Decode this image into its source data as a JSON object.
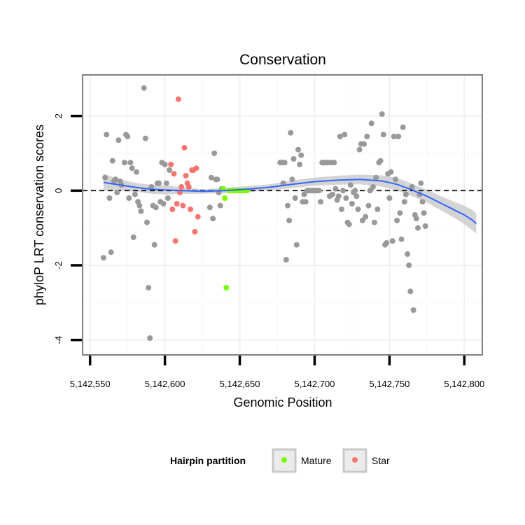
{
  "chart_data": {
    "type": "scatter",
    "title": "Conservation",
    "xlabel": "Genomic Position",
    "ylabel": "phyloP LRT conservation scores",
    "xlim": [
      5142545,
      5142812
    ],
    "ylim": [
      -4.4,
      3.1
    ],
    "xticks": [
      5142550,
      5142600,
      5142650,
      5142700,
      5142750,
      5142800
    ],
    "xtick_labels": [
      "5,142,550",
      "5,142,600",
      "5,142,650",
      "5,142,700",
      "5,142,750",
      "5,142,800"
    ],
    "yticks": [
      2,
      0,
      -2,
      -4
    ],
    "ytick_labels": [
      "2",
      "0",
      "-2",
      "-4"
    ],
    "reference_line_y": 0,
    "grid": true,
    "legend": {
      "title": "Hairpin partition",
      "position": "bottom",
      "entries": [
        {
          "label": "Mature",
          "color": "#7CFC00"
        },
        {
          "label": "Star",
          "color": "#F8766D"
        }
      ]
    },
    "colors": {
      "other": "#999999",
      "mature": "#7CFC00",
      "star": "#F8766D",
      "smooth": "#3366FF",
      "band": "#cccccc"
    },
    "series": [
      {
        "name": "Other",
        "points": [
          [
            5142559,
            -1.8
          ],
          [
            5142560,
            0.35
          ],
          [
            5142561,
            1.5
          ],
          [
            5142563,
            -0.2
          ],
          [
            5142564,
            -1.65
          ],
          [
            5142565,
            0.8
          ],
          [
            5142566,
            0.25
          ],
          [
            5142567,
            0.3
          ],
          [
            5142568,
            -0.05
          ],
          [
            5142569,
            1.35
          ],
          [
            5142570,
            0.25
          ],
          [
            5142571,
            0.15
          ],
          [
            5142573,
            0.75
          ],
          [
            5142574,
            1.5
          ],
          [
            5142575,
            1.45
          ],
          [
            5142576,
            -0.2
          ],
          [
            5142577,
            0.75
          ],
          [
            5142578,
            0.6
          ],
          [
            5142579,
            -1.25
          ],
          [
            5142580,
            -0.1
          ],
          [
            5142581,
            0.5
          ],
          [
            5142582,
            -0.3
          ],
          [
            5142583,
            -0.4
          ],
          [
            5142584,
            -0.55
          ],
          [
            5142586,
            2.75
          ],
          [
            5142587,
            1.4
          ],
          [
            5142588,
            -0.85
          ],
          [
            5142589,
            -2.6
          ],
          [
            5142590,
            -3.95
          ],
          [
            5142591,
            0.1
          ],
          [
            5142592,
            -0.4
          ],
          [
            5142593,
            -1.45
          ],
          [
            5142594,
            -0.45
          ],
          [
            5142595,
            0.2
          ],
          [
            5142596,
            0.2
          ],
          [
            5142597,
            -0.3
          ],
          [
            5142598,
            0.75
          ],
          [
            5142599,
            -0.35
          ],
          [
            5142600,
            0.7
          ],
          [
            5142601,
            0.2
          ],
          [
            5142602,
            -0.2
          ],
          [
            5142603,
            0.55
          ],
          [
            5142630,
            -0.45
          ],
          [
            5142631,
            0.35
          ],
          [
            5142632,
            -0.75
          ],
          [
            5142633,
            1.0
          ],
          [
            5142634,
            0.3
          ],
          [
            5142635,
            0.3
          ],
          [
            5142636,
            -0.05
          ],
          [
            5142637,
            -0.4
          ],
          [
            5142638,
            0.05
          ],
          [
            5142677,
            0.75
          ],
          [
            5142678,
            0.75
          ],
          [
            5142679,
            0.2
          ],
          [
            5142680,
            0.75
          ],
          [
            5142681,
            -1.85
          ],
          [
            5142682,
            -0.4
          ],
          [
            5142683,
            -0.8
          ],
          [
            5142684,
            1.55
          ],
          [
            5142685,
            0.3
          ],
          [
            5142686,
            0.85
          ],
          [
            5142687,
            -0.2
          ],
          [
            5142688,
            -1.45
          ],
          [
            5142689,
            1.1
          ],
          [
            5142690,
            0.7
          ],
          [
            5142691,
            0.95
          ],
          [
            5142692,
            -0.3
          ],
          [
            5142693,
            -0.1
          ],
          [
            5142694,
            -0.3
          ],
          [
            5142695,
            0.0
          ],
          [
            5142696,
            0.0
          ],
          [
            5142697,
            0.0
          ],
          [
            5142698,
            0.0
          ],
          [
            5142699,
            0.0
          ],
          [
            5142700,
            0.0
          ],
          [
            5142701,
            0.0
          ],
          [
            5142702,
            0.0
          ],
          [
            5142703,
            0.0
          ],
          [
            5142704,
            -0.3
          ],
          [
            5142705,
            0.75
          ],
          [
            5142706,
            0.75
          ],
          [
            5142707,
            0.75
          ],
          [
            5142708,
            0.75
          ],
          [
            5142709,
            0.75
          ],
          [
            5142710,
            -0.15
          ],
          [
            5142711,
            0.75
          ],
          [
            5142712,
            -0.1
          ],
          [
            5142713,
            0.75
          ],
          [
            5142714,
            0.05
          ],
          [
            5142715,
            -0.25
          ],
          [
            5142716,
            -0.15
          ],
          [
            5142717,
            1.45
          ],
          [
            5142718,
            -0.5
          ],
          [
            5142719,
            0.0
          ],
          [
            5142720,
            1.5
          ],
          [
            5142721,
            -0.2
          ],
          [
            5142722,
            -0.85
          ],
          [
            5142723,
            -0.9
          ],
          [
            5142724,
            0.15
          ],
          [
            5142725,
            -0.35
          ],
          [
            5142726,
            -0.05
          ],
          [
            5142727,
            0.0
          ],
          [
            5142728,
            -0.15
          ],
          [
            5142729,
            -0.5
          ],
          [
            5142730,
            1.1
          ],
          [
            5142731,
            1.25
          ],
          [
            5142732,
            -0.8
          ],
          [
            5142733,
            1.25
          ],
          [
            5142734,
            -0.7
          ],
          [
            5142735,
            1.45
          ],
          [
            5142736,
            -0.4
          ],
          [
            5142737,
            0.0
          ],
          [
            5142738,
            1.8
          ],
          [
            5142739,
            0.1
          ],
          [
            5142740,
            -0.85
          ],
          [
            5142741,
            0.35
          ],
          [
            5142742,
            -0.5
          ],
          [
            5142743,
            0.75
          ],
          [
            5142744,
            0.8
          ],
          [
            5142745,
            2.05
          ],
          [
            5142746,
            1.5
          ],
          [
            5142747,
            -1.45
          ],
          [
            5142748,
            -1.4
          ],
          [
            5142749,
            0.45
          ],
          [
            5142750,
            -0.2
          ],
          [
            5142751,
            0.5
          ],
          [
            5142752,
            -1.35
          ],
          [
            5142753,
            1.45
          ],
          [
            5142754,
            0.3
          ],
          [
            5142755,
            -0.8
          ],
          [
            5142756,
            1.45
          ],
          [
            5142757,
            -0.6
          ],
          [
            5142758,
            -1.3
          ],
          [
            5142759,
            1.7
          ],
          [
            5142760,
            -0.3
          ],
          [
            5142761,
            -0.1
          ],
          [
            5142762,
            -1.7
          ],
          [
            5142763,
            -2.0
          ],
          [
            5142764,
            -2.7
          ],
          [
            5142765,
            0.1
          ],
          [
            5142766,
            -3.2
          ],
          [
            5142767,
            -0.65
          ],
          [
            5142768,
            -0.75
          ],
          [
            5142769,
            -1.0
          ],
          [
            5142770,
            -0.1
          ],
          [
            5142771,
            0.2
          ],
          [
            5142772,
            -0.3
          ],
          [
            5142773,
            -0.6
          ],
          [
            5142774,
            -0.95
          ]
        ]
      },
      {
        "name": "Mature",
        "points": [
          [
            5142639,
            0.05
          ],
          [
            5142640,
            -0.2
          ],
          [
            5142641,
            -2.6
          ],
          [
            5142643,
            0.0
          ],
          [
            5142645,
            0.0
          ],
          [
            5142647,
            0.0
          ],
          [
            5142649,
            0.0
          ],
          [
            5142651,
            0.0
          ],
          [
            5142653,
            0.0
          ],
          [
            5142655,
            0.0
          ]
        ]
      },
      {
        "name": "Star",
        "points": [
          [
            5142604,
            0.7
          ],
          [
            5142605,
            -0.5
          ],
          [
            5142606,
            0.45
          ],
          [
            5142607,
            -1.35
          ],
          [
            5142608,
            -0.35
          ],
          [
            5142609,
            2.45
          ],
          [
            5142610,
            -0.05
          ],
          [
            5142611,
            0.1
          ],
          [
            5142612,
            -0.4
          ],
          [
            5142613,
            1.15
          ],
          [
            5142614,
            0.4
          ],
          [
            5142615,
            0.2
          ],
          [
            5142616,
            0.1
          ],
          [
            5142617,
            -0.5
          ],
          [
            5142618,
            0.55
          ],
          [
            5142619,
            0.55
          ],
          [
            5142620,
            -1.1
          ],
          [
            5142621,
            0.6
          ],
          [
            5142622,
            -0.7
          ]
        ]
      }
    ],
    "smooth": {
      "x": [
        5142559,
        5142570,
        5142580,
        5142590,
        5142600,
        5142612,
        5142625,
        5142640,
        5142655,
        5142670,
        5142685,
        5142700,
        5142715,
        5142730,
        5142745,
        5142755,
        5142765,
        5142775,
        5142785,
        5142795,
        5142800,
        5142805,
        5142808
      ],
      "y": [
        0.22,
        0.15,
        0.09,
        0.04,
        0.02,
        0.0,
        -0.02,
        0.0,
        0.04,
        0.09,
        0.17,
        0.24,
        0.28,
        0.3,
        0.26,
        0.17,
        0.02,
        -0.15,
        -0.35,
        -0.55,
        -0.65,
        -0.78,
        -0.88
      ],
      "lo": [
        0.0,
        0.0,
        -0.03,
        -0.08,
        -0.1,
        -0.09,
        -0.08,
        -0.07,
        -0.04,
        0.01,
        0.07,
        0.13,
        0.16,
        0.17,
        0.11,
        0.0,
        -0.15,
        -0.32,
        -0.54,
        -0.77,
        -0.9,
        -1.05,
        -1.15
      ],
      "hi": [
        0.45,
        0.3,
        0.21,
        0.16,
        0.14,
        0.09,
        0.04,
        0.07,
        0.12,
        0.17,
        0.27,
        0.35,
        0.4,
        0.43,
        0.41,
        0.34,
        0.19,
        0.02,
        -0.16,
        -0.33,
        -0.4,
        -0.51,
        -0.61
      ]
    }
  }
}
